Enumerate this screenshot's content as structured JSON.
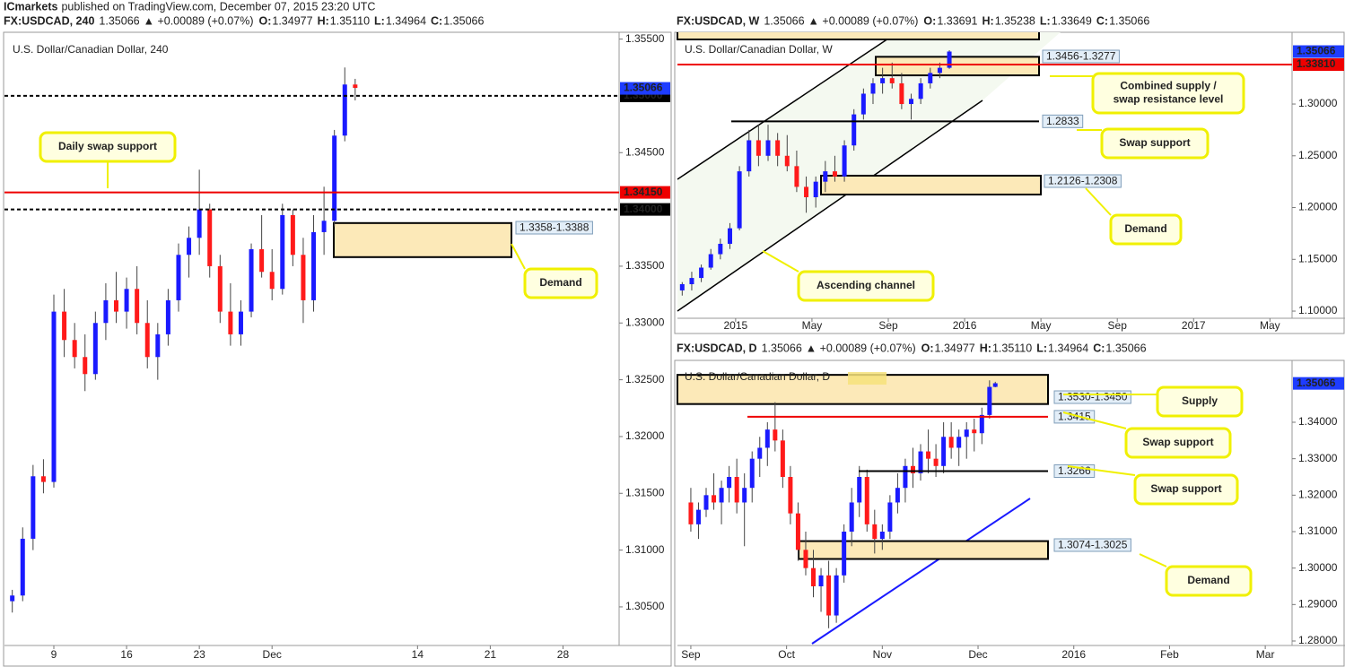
{
  "publisher": {
    "brand": "ICmarkets",
    "text": "published on TradingView.com, December 07, 2015 23:20 UTC"
  },
  "chart_data": [
    {
      "type": "candlestick",
      "title": "U.S. Dollar/Canadian Dollar, 240",
      "header": {
        "symbol": "FX:USDCAD, 240",
        "price": "1.35066",
        "change": "▲ +0.00089 (+0.07%)",
        "ohlc": [
          {
            "label": "O:",
            "value": "1.34977"
          },
          {
            "label": "H:",
            "value": "1.35110"
          },
          {
            "label": "L:",
            "value": "1.34964"
          },
          {
            "label": "C:",
            "value": "1.35066"
          }
        ]
      },
      "up_color": "#1a1aff",
      "down_color": "#ff1a1a",
      "x": [
        5,
        6,
        7,
        8,
        9,
        10,
        11,
        12,
        13,
        14,
        15,
        16,
        17,
        18,
        19,
        20,
        21,
        22,
        23,
        24,
        25,
        26,
        27,
        28,
        29,
        30,
        31,
        32,
        33,
        34,
        35,
        36,
        37,
        38
      ],
      "open": [
        1.3055,
        1.306,
        1.311,
        1.3165,
        1.316,
        1.331,
        1.3285,
        1.327,
        1.3255,
        1.33,
        1.332,
        1.331,
        1.333,
        1.33,
        1.327,
        1.329,
        1.332,
        1.336,
        1.3375,
        1.34,
        1.335,
        1.331,
        1.329,
        1.331,
        1.3365,
        1.3345,
        1.333,
        1.3395,
        1.336,
        1.332,
        1.338,
        1.339,
        1.3465,
        1.351
      ],
      "high": [
        1.3065,
        1.312,
        1.3175,
        1.318,
        1.3325,
        1.333,
        1.33,
        1.329,
        1.331,
        1.3335,
        1.3345,
        1.334,
        1.335,
        1.332,
        1.33,
        1.333,
        1.337,
        1.3385,
        1.3435,
        1.3405,
        1.336,
        1.3335,
        1.332,
        1.337,
        1.3395,
        1.3365,
        1.3405,
        1.34,
        1.3375,
        1.3395,
        1.342,
        1.347,
        1.3525,
        1.3515
      ],
      "low": [
        1.3045,
        1.3055,
        1.31,
        1.315,
        1.3155,
        1.327,
        1.326,
        1.324,
        1.325,
        1.3285,
        1.33,
        1.3295,
        1.329,
        1.326,
        1.325,
        1.328,
        1.331,
        1.334,
        1.336,
        1.334,
        1.33,
        1.328,
        1.328,
        1.3305,
        1.334,
        1.332,
        1.3325,
        1.335,
        1.33,
        1.331,
        1.336,
        1.3385,
        1.346,
        1.3496
      ],
      "close": [
        1.306,
        1.311,
        1.3165,
        1.316,
        1.331,
        1.3285,
        1.327,
        1.3255,
        1.33,
        1.332,
        1.331,
        1.333,
        1.33,
        1.327,
        1.329,
        1.332,
        1.336,
        1.3375,
        1.34,
        1.335,
        1.331,
        1.329,
        1.331,
        1.3365,
        1.3345,
        1.333,
        1.3395,
        1.336,
        1.332,
        1.338,
        1.339,
        1.3465,
        1.351,
        1.3507
      ],
      "xlim": [
        4.25,
        63.4
      ],
      "ylim": [
        1.3016,
        1.3556
      ],
      "xticks": [
        9,
        16,
        23,
        {
          "value": 30,
          "label": "Dec"
        },
        {
          "value": 44,
          "label": "14"
        },
        {
          "value": 51,
          "label": "21"
        },
        {
          "value": 58,
          "label": "28"
        }
      ],
      "yticks": [
        {
          "value": 1.355,
          "label": "1.35500"
        },
        {
          "value": 1.345,
          "label": "1.34500"
        },
        {
          "value": 1.335,
          "label": "1.33500"
        },
        {
          "value": 1.33,
          "label": "1.33000"
        },
        {
          "value": 1.325,
          "label": "1.32500"
        },
        {
          "value": 1.32,
          "label": "1.32000"
        },
        {
          "value": 1.315,
          "label": "1.31500"
        },
        {
          "value": 1.31,
          "label": "1.31000"
        },
        {
          "value": 1.305,
          "label": "1.30500"
        }
      ],
      "last_price": {
        "value": 1.35066,
        "label": "1.35066",
        "color": "#1e3cff"
      },
      "levels": [
        {
          "value": 1.35,
          "label": "1.35000",
          "color": "#000000",
          "dashed": true
        },
        {
          "value": 1.3415,
          "label": "1.34150",
          "color": "#ee0000",
          "dashed": false
        },
        {
          "value": 1.34,
          "label": "1.34000",
          "color": "#000000",
          "dashed": true
        }
      ],
      "zones": [
        {
          "label": "1.3358-1.3388",
          "low": 1.3358,
          "high": 1.3388
        }
      ],
      "annotations": [
        [
          "Daily swap support"
        ],
        [
          "Demand"
        ]
      ]
    },
    {
      "type": "candlestick",
      "title": "U.S. Dollar/Canadian Dollar, W",
      "header": {
        "symbol": "FX:USDCAD, W",
        "price": "1.35066",
        "change": "▲ +0.00089 (+0.07%)",
        "ohlc": [
          {
            "label": "O:",
            "value": "1.33691"
          },
          {
            "label": "H:",
            "value": "1.35238"
          },
          {
            "label": "L:",
            "value": "1.33649"
          },
          {
            "label": "C:",
            "value": "1.35066"
          }
        ]
      },
      "up_color": "#1a1aff",
      "down_color": "#ff1a1a",
      "x": [
        -2.8,
        -2.3,
        -1.8,
        -1.3,
        -0.8,
        -0.3,
        0.2,
        0.7,
        1.2,
        1.7,
        2.2,
        2.7,
        3.2,
        3.7,
        4.2,
        4.7,
        5.2,
        5.7,
        6.2,
        6.7,
        7.2,
        7.7,
        8.2,
        8.7,
        9.2,
        9.7,
        10.2,
        10.7,
        11.2
      ],
      "open": [
        1.12,
        1.126,
        1.132,
        1.142,
        1.155,
        1.165,
        1.18,
        1.235,
        1.265,
        1.25,
        1.265,
        1.25,
        1.24,
        1.22,
        1.21,
        1.225,
        1.235,
        1.23,
        1.26,
        1.29,
        1.31,
        1.32,
        1.325,
        1.32,
        1.3,
        1.305,
        1.32,
        1.33,
        1.335
      ],
      "high": [
        1.128,
        1.138,
        1.145,
        1.16,
        1.17,
        1.185,
        1.24,
        1.275,
        1.28,
        1.28,
        1.272,
        1.27,
        1.255,
        1.23,
        1.23,
        1.245,
        1.25,
        1.265,
        1.295,
        1.315,
        1.325,
        1.335,
        1.34,
        1.33,
        1.31,
        1.325,
        1.335,
        1.34,
        1.352
      ],
      "low": [
        1.115,
        1.12,
        1.128,
        1.14,
        1.15,
        1.16,
        1.178,
        1.23,
        1.24,
        1.245,
        1.24,
        1.235,
        1.215,
        1.195,
        1.2,
        1.215,
        1.225,
        1.225,
        1.255,
        1.285,
        1.3,
        1.31,
        1.315,
        1.295,
        1.285,
        1.3,
        1.315,
        1.325,
        1.334
      ],
      "close": [
        1.126,
        1.132,
        1.142,
        1.155,
        1.165,
        1.18,
        1.235,
        1.265,
        1.25,
        1.265,
        1.25,
        1.24,
        1.22,
        1.21,
        1.225,
        1.235,
        1.23,
        1.26,
        1.29,
        1.31,
        1.32,
        1.325,
        1.32,
        1.3,
        1.305,
        1.32,
        1.33,
        1.335,
        1.3507
      ],
      "xlim": [
        -3.05,
        29.16
      ],
      "ylim": [
        1.0931,
        1.3693
      ],
      "xticks": [
        {
          "value": 0,
          "label": "2015"
        },
        {
          "value": 4,
          "label": "May"
        },
        {
          "value": 8,
          "label": "Sep"
        },
        {
          "value": 12,
          "label": "2016"
        },
        {
          "value": 16,
          "label": "May"
        },
        {
          "value": 20,
          "label": "Sep"
        },
        {
          "value": 24,
          "label": "2017"
        },
        {
          "value": 28,
          "label": "May"
        }
      ],
      "yticks": [
        {
          "value": 1.3,
          "label": "1.30000"
        },
        {
          "value": 1.25,
          "label": "1.25000"
        },
        {
          "value": 1.2,
          "label": "1.20000"
        },
        {
          "value": 1.15,
          "label": "1.15000"
        },
        {
          "value": 1.1,
          "label": "1.10000"
        }
      ],
      "last_price": {
        "value": 1.35066,
        "label": "1.35066",
        "color": "#1e3cff"
      },
      "levels": [
        {
          "value": 1.3381,
          "label": "1.33810",
          "color": "#ee0000",
          "dashed": false
        },
        {
          "value": 1.2833,
          "label": "1.2833",
          "color": "#000000",
          "dashed": false
        }
      ],
      "zones": [
        {
          "label": "1.3456-1.3277",
          "high": 1.3456,
          "low": 1.3277
        },
        {
          "label": "1.2126-1.2308",
          "low": 1.2126,
          "high": 1.2308
        }
      ],
      "annotations": [
        [
          "Combined supply /",
          "swap resistance level"
        ],
        [
          "Swap support"
        ],
        [
          "Demand"
        ],
        [
          "Ascending channel"
        ]
      ]
    },
    {
      "type": "candlestick",
      "title": "U.S. Dollar/Canadian Dollar, D",
      "header": {
        "symbol": "FX:USDCAD, D",
        "price": "1.35066",
        "change": "▲ +0.00089 (+0.07%)",
        "ohlc": [
          {
            "label": "O:",
            "value": "1.34977"
          },
          {
            "label": "H:",
            "value": "1.35110"
          },
          {
            "label": "L:",
            "value": "1.34964"
          },
          {
            "label": "C:",
            "value": "1.35066"
          }
        ]
      },
      "up_color": "#1a1aff",
      "down_color": "#ff1a1a",
      "x": [
        0,
        0.08,
        0.16,
        0.24,
        0.32,
        0.4,
        0.48,
        0.56,
        0.64,
        0.72,
        0.8,
        0.88,
        0.96,
        1.04,
        1.12,
        1.2,
        1.28,
        1.36,
        1.44,
        1.52,
        1.6,
        1.68,
        1.76,
        1.84,
        1.92,
        2,
        2.08,
        2.16,
        2.24,
        2.32,
        2.4,
        2.48,
        2.56,
        2.64,
        2.72,
        2.8,
        2.88,
        2.96,
        3.04,
        3.12,
        3.18
      ],
      "open": [
        1.318,
        1.312,
        1.316,
        1.32,
        1.318,
        1.322,
        1.325,
        1.318,
        1.322,
        1.33,
        1.333,
        1.338,
        1.335,
        1.325,
        1.315,
        1.305,
        1.3,
        1.295,
        1.298,
        1.287,
        1.298,
        1.31,
        1.318,
        1.325,
        1.312,
        1.308,
        1.31,
        1.318,
        1.322,
        1.328,
        1.326,
        1.332,
        1.33,
        1.328,
        1.336,
        1.333,
        1.336,
        1.338,
        1.337,
        1.342,
        1.3497
      ],
      "high": [
        1.322,
        1.318,
        1.322,
        1.326,
        1.324,
        1.328,
        1.33,
        1.326,
        1.332,
        1.336,
        1.34,
        1.3455,
        1.338,
        1.328,
        1.318,
        1.31,
        1.305,
        1.3,
        1.302,
        1.3,
        1.312,
        1.322,
        1.328,
        1.327,
        1.316,
        1.312,
        1.32,
        1.326,
        1.33,
        1.333,
        1.334,
        1.338,
        1.334,
        1.34,
        1.34,
        1.338,
        1.34,
        1.341,
        1.344,
        1.3515,
        1.3511
      ],
      "low": [
        1.31,
        1.308,
        1.314,
        1.316,
        1.312,
        1.318,
        1.315,
        1.306,
        1.318,
        1.325,
        1.328,
        1.332,
        1.322,
        1.312,
        1.302,
        1.298,
        1.292,
        1.288,
        1.2835,
        1.285,
        1.296,
        1.306,
        1.314,
        1.31,
        1.304,
        1.305,
        1.308,
        1.315,
        1.318,
        1.322,
        1.324,
        1.326,
        1.325,
        1.326,
        1.33,
        1.328,
        1.33,
        1.332,
        1.334,
        1.341,
        1.3496
      ],
      "close": [
        1.312,
        1.316,
        1.32,
        1.318,
        1.322,
        1.325,
        1.318,
        1.322,
        1.33,
        1.333,
        1.338,
        1.335,
        1.325,
        1.315,
        1.305,
        1.3,
        1.295,
        1.298,
        1.287,
        1.298,
        1.31,
        1.318,
        1.325,
        1.312,
        1.308,
        1.31,
        1.318,
        1.322,
        1.328,
        1.326,
        1.332,
        1.33,
        1.328,
        1.336,
        1.333,
        1.336,
        1.338,
        1.337,
        1.342,
        1.3497,
        1.3507
      ],
      "xlim": [
        -0.14,
        6.28
      ],
      "ylim": [
        1.27877,
        1.35697
      ],
      "xticks": [
        {
          "value": 0,
          "label": "Sep"
        },
        {
          "value": 1,
          "label": "Oct"
        },
        {
          "value": 2,
          "label": "Nov"
        },
        {
          "value": 3,
          "label": "Dec"
        },
        {
          "value": 4,
          "label": "2016"
        },
        {
          "value": 5,
          "label": "Feb"
        },
        {
          "value": 6,
          "label": "Mar"
        }
      ],
      "yticks": [
        {
          "value": 1.34,
          "label": "1.34000"
        },
        {
          "value": 1.33,
          "label": "1.33000"
        },
        {
          "value": 1.32,
          "label": "1.32000"
        },
        {
          "value": 1.31,
          "label": "1.31000"
        },
        {
          "value": 1.3,
          "label": "1.30000"
        },
        {
          "value": 1.29,
          "label": "1.29000"
        },
        {
          "value": 1.28,
          "label": "1.28000"
        }
      ],
      "last_price": {
        "value": 1.35066,
        "label": "1.35066",
        "color": "#1e3cff"
      },
      "levels": [
        {
          "value": 1.3415,
          "label": "1.3415",
          "color": "#ee0000",
          "dashed": false
        },
        {
          "value": 1.3266,
          "label": "1.3266",
          "color": "#000000",
          "dashed": false
        }
      ],
      "zones": [
        {
          "label": "1.3530-1.3450",
          "high": 1.353,
          "low": 1.345
        },
        {
          "label": "1.3074-1.3025",
          "high": 1.3074,
          "low": 1.3025
        }
      ],
      "annotations": [
        [
          "Supply"
        ],
        [
          "Swap support"
        ],
        [
          "Swap support"
        ],
        [
          "Demand"
        ]
      ]
    }
  ]
}
